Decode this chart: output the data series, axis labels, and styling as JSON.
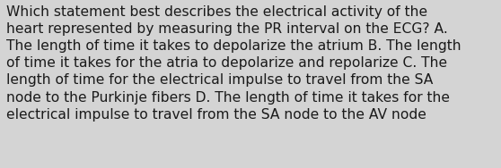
{
  "text_lines": [
    "Which statement best describes the electrical activity of the",
    "heart represented by measuring the PR interval on the ECG? A.",
    "The length of time it takes to depolarize the atrium B. The length",
    "of time it takes for the atria to depolarize and repolarize C. The",
    "length of time for the electrical impulse to travel from the SA",
    "node to the Purkinje fibers D. The length of time it takes for the",
    "electrical impulse to travel from the SA node to the AV node"
  ],
  "background_color": "#d4d4d4",
  "text_color": "#1a1a1a",
  "font_size": 11.2,
  "fig_width": 5.58,
  "fig_height": 1.88,
  "dpi": 100
}
